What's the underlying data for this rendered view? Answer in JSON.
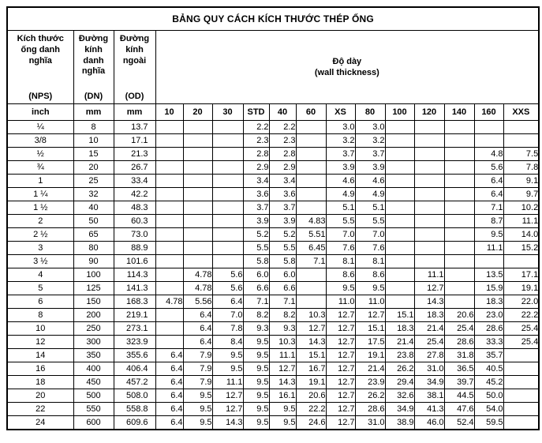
{
  "title": "BẢNG QUY CÁCH KÍCH THƯỚC THÉP ỐNG",
  "header": {
    "nps": {
      "label": "Kích thước ống danh nghĩa",
      "code": "(NPS)",
      "unit": "inch"
    },
    "dn": {
      "label": "Đường kính danh nghĩa",
      "code": "(DN)",
      "unit": "mm"
    },
    "od": {
      "label": "Đường kính ngoài",
      "code": "(OD)",
      "unit": "mm"
    },
    "thickness": {
      "title": "Độ dày",
      "subtitle": "(wall thickness)"
    },
    "schedules": [
      "10",
      "20",
      "30",
      "STD",
      "40",
      "60",
      "XS",
      "80",
      "100",
      "120",
      "140",
      "160",
      "XXS"
    ]
  },
  "colors": {
    "border": "#000000",
    "text": "#000000",
    "background": "#ffffff"
  },
  "rows": [
    {
      "nps": "¼",
      "dn": "8",
      "od": "13.7",
      "t": [
        "",
        "",
        "",
        "2.2",
        "2.2",
        "",
        "3.0",
        "3.0",
        "",
        "",
        "",
        "",
        ""
      ]
    },
    {
      "nps": "3/8",
      "dn": "10",
      "od": "17.1",
      "t": [
        "",
        "",
        "",
        "2.3",
        "2.3",
        "",
        "3.2",
        "3.2",
        "",
        "",
        "",
        "",
        ""
      ]
    },
    {
      "nps": "½",
      "dn": "15",
      "od": "21.3",
      "t": [
        "",
        "",
        "",
        "2.8",
        "2.8",
        "",
        "3.7",
        "3.7",
        "",
        "",
        "",
        "4.8",
        "7.5"
      ]
    },
    {
      "nps": "¾",
      "dn": "20",
      "od": "26.7",
      "t": [
        "",
        "",
        "",
        "2.9",
        "2.9",
        "",
        "3.9",
        "3.9",
        "",
        "",
        "",
        "5.6",
        "7.8"
      ]
    },
    {
      "nps": "1",
      "dn": "25",
      "od": "33.4",
      "t": [
        "",
        "",
        "",
        "3.4",
        "3.4",
        "",
        "4.6",
        "4.6",
        "",
        "",
        "",
        "6.4",
        "9.1"
      ]
    },
    {
      "nps": "1 ¼",
      "dn": "32",
      "od": "42.2",
      "t": [
        "",
        "",
        "",
        "3.6",
        "3.6",
        "",
        "4.9",
        "4.9",
        "",
        "",
        "",
        "6.4",
        "9.7"
      ]
    },
    {
      "nps": "1 ½",
      "dn": "40",
      "od": "48.3",
      "t": [
        "",
        "",
        "",
        "3.7",
        "3.7",
        "",
        "5.1",
        "5.1",
        "",
        "",
        "",
        "7.1",
        "10.2"
      ]
    },
    {
      "nps": "2",
      "dn": "50",
      "od": "60.3",
      "t": [
        "",
        "",
        "",
        "3.9",
        "3.9",
        "4.83",
        "5.5",
        "5.5",
        "",
        "",
        "",
        "8.7",
        "11.1"
      ]
    },
    {
      "nps": "2 ½",
      "dn": "65",
      "od": "73.0",
      "t": [
        "",
        "",
        "",
        "5.2",
        "5.2",
        "5.51",
        "7.0",
        "7.0",
        "",
        "",
        "",
        "9.5",
        "14.0"
      ]
    },
    {
      "nps": "3",
      "dn": "80",
      "od": "88.9",
      "t": [
        "",
        "",
        "",
        "5.5",
        "5.5",
        "6.45",
        "7.6",
        "7.6",
        "",
        "",
        "",
        "11.1",
        "15.2"
      ]
    },
    {
      "nps": "3 ½",
      "dn": "90",
      "od": "101.6",
      "t": [
        "",
        "",
        "",
        "5.8",
        "5.8",
        "7.1",
        "8.1",
        "8.1",
        "",
        "",
        "",
        "",
        ""
      ]
    },
    {
      "nps": "4",
      "dn": "100",
      "od": "114.3",
      "t": [
        "",
        "4.78",
        "5.6",
        "6.0",
        "6.0",
        "",
        "8.6",
        "8.6",
        "",
        "11.1",
        "",
        "13.5",
        "17.1"
      ]
    },
    {
      "nps": "5",
      "dn": "125",
      "od": "141.3",
      "t": [
        "",
        "4.78",
        "5.6",
        "6.6",
        "6.6",
        "",
        "9.5",
        "9.5",
        "",
        "12.7",
        "",
        "15.9",
        "19.1"
      ]
    },
    {
      "nps": "6",
      "dn": "150",
      "od": "168.3",
      "t": [
        "4.78",
        "5.56",
        "6.4",
        "7.1",
        "7.1",
        "",
        "11.0",
        "11.0",
        "",
        "14.3",
        "",
        "18.3",
        "22.0"
      ]
    },
    {
      "nps": "8",
      "dn": "200",
      "od": "219.1",
      "t": [
        "",
        "6.4",
        "7.0",
        "8.2",
        "8.2",
        "10.3",
        "12.7",
        "12.7",
        "15.1",
        "18.3",
        "20.6",
        "23.0",
        "22.2"
      ]
    },
    {
      "nps": "10",
      "dn": "250",
      "od": "273.1",
      "t": [
        "",
        "6.4",
        "7.8",
        "9.3",
        "9.3",
        "12.7",
        "12.7",
        "15.1",
        "18.3",
        "21.4",
        "25.4",
        "28.6",
        "25.4"
      ]
    },
    {
      "nps": "12",
      "dn": "300",
      "od": "323.9",
      "t": [
        "",
        "6.4",
        "8.4",
        "9.5",
        "10.3",
        "14.3",
        "12.7",
        "17.5",
        "21.4",
        "25.4",
        "28.6",
        "33.3",
        "25.4"
      ]
    },
    {
      "nps": "14",
      "dn": "350",
      "od": "355.6",
      "t": [
        "6.4",
        "7.9",
        "9.5",
        "9.5",
        "11.1",
        "15.1",
        "12.7",
        "19.1",
        "23.8",
        "27.8",
        "31.8",
        "35.7",
        ""
      ]
    },
    {
      "nps": "16",
      "dn": "400",
      "od": "406.4",
      "t": [
        "6.4",
        "7.9",
        "9.5",
        "9.5",
        "12.7",
        "16.7",
        "12.7",
        "21.4",
        "26.2",
        "31.0",
        "36.5",
        "40.5",
        ""
      ]
    },
    {
      "nps": "18",
      "dn": "450",
      "od": "457.2",
      "t": [
        "6.4",
        "7.9",
        "11.1",
        "9.5",
        "14.3",
        "19.1",
        "12.7",
        "23.9",
        "29.4",
        "34.9",
        "39.7",
        "45.2",
        ""
      ]
    },
    {
      "nps": "20",
      "dn": "500",
      "od": "508.0",
      "t": [
        "6.4",
        "9.5",
        "12.7",
        "9.5",
        "16.1",
        "20.6",
        "12.7",
        "26.2",
        "32.6",
        "38.1",
        "44.5",
        "50.0",
        ""
      ]
    },
    {
      "nps": "22",
      "dn": "550",
      "od": "558.8",
      "t": [
        "6.4",
        "9.5",
        "12.7",
        "9.5",
        "9.5",
        "22.2",
        "12.7",
        "28.6",
        "34.9",
        "41.3",
        "47.6",
        "54.0",
        ""
      ]
    },
    {
      "nps": "24",
      "dn": "600",
      "od": "609.6",
      "t": [
        "6.4",
        "9.5",
        "14.3",
        "9.5",
        "9.5",
        "24.6",
        "12.7",
        "31.0",
        "38.9",
        "46.0",
        "52.4",
        "59.5",
        ""
      ]
    }
  ]
}
